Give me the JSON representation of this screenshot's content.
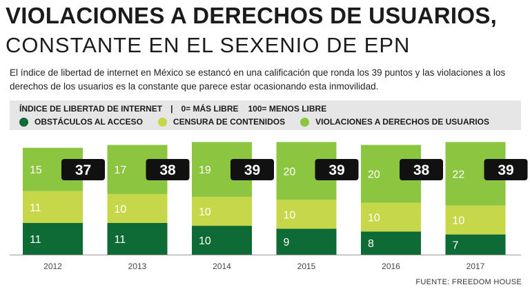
{
  "header": {
    "title_line1": "VIOLACIONES A DERECHOS DE USUARIOS,",
    "title_line2": "CONSTANTE EN EL SEXENIO DE EPN",
    "description": "El índice de libertad de internet en México se estancó en una calificación que ronda los 39 puntos y las violaciones a los derechos de los usuarios es la constante que parece estar ocasionando esta inmovilidad."
  },
  "legend": {
    "index_label": "ÍNDICE DE LIBERTAD DE INTERNET",
    "separator": "|",
    "scale_free": "0= MÁS LIBRE",
    "scale_unfree": "100= MENOS LIBRE"
  },
  "colors": {
    "obstaculos": "#0f6b35",
    "censura": "#c6d84a",
    "violaciones": "#8cc540",
    "total_badge_bg": "#111111",
    "total_badge_text": "#ffffff",
    "axis": "#9a9a9a"
  },
  "chart_data": {
    "type": "bar",
    "stacked": true,
    "categories": [
      "2012",
      "2013",
      "2014",
      "2015",
      "2016",
      "2017"
    ],
    "series": [
      {
        "name": "OBSTÁCULOS AL ACCESO",
        "values": [
          11,
          11,
          10,
          9,
          8,
          7
        ]
      },
      {
        "name": "CENSURA DE CONTENIDOS",
        "values": [
          11,
          10,
          10,
          10,
          10,
          10
        ]
      },
      {
        "name": "VIOLACIONES A DERECHOS DE USUARIOS",
        "values": [
          15,
          17,
          19,
          20,
          20,
          22
        ]
      }
    ],
    "totals": [
      37,
      38,
      39,
      39,
      38,
      39
    ],
    "ylim": [
      0,
      41
    ],
    "grid": false
  },
  "footer": {
    "source": "FUENTE: FREEDOM HOUSE"
  }
}
